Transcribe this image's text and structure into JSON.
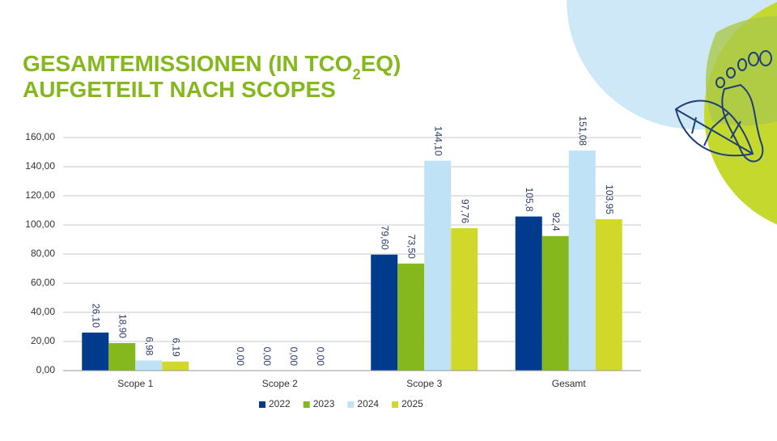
{
  "chart_data": {
    "type": "bar",
    "title_line1_start": "GESAMTEMISSIONEN (IN TCO",
    "title_line1_sub": "2",
    "title_line1_end": "EQ)",
    "title_line2": "AUFGETEILT NACH SCOPES",
    "categories": [
      "Scope 1",
      "Scope 2",
      "Scope 3",
      "Gesamt"
    ],
    "series": [
      {
        "name": "2022",
        "color": "#003b8e",
        "values": [
          26.1,
          0,
          79.6,
          105.8
        ],
        "value_labels": [
          "26,10",
          "0,00",
          "79,60",
          "105,8"
        ]
      },
      {
        "name": "2023",
        "color": "#84b81c",
        "values": [
          18.9,
          0,
          73.5,
          92.4
        ],
        "value_labels": [
          "18,90",
          "0,00",
          "73,50",
          "92,4"
        ]
      },
      {
        "name": "2024",
        "color": "#bfe2f7",
        "values": [
          6.98,
          0,
          144.1,
          151.08
        ],
        "value_labels": [
          "6,98",
          "0,00",
          "144,10",
          "151,08"
        ]
      },
      {
        "name": "2025",
        "color": "#d0d92a",
        "values": [
          6.19,
          0,
          97.76,
          103.95
        ],
        "value_labels": [
          "6,19",
          "0,00",
          "97,76",
          "103,95"
        ]
      }
    ],
    "ylim": [
      0,
      160
    ],
    "yticks": [
      {
        "value": 0,
        "label": "0,00"
      },
      {
        "value": 20,
        "label": "20,00"
      },
      {
        "value": 40,
        "label": "40,00"
      },
      {
        "value": 60,
        "label": "60,00"
      },
      {
        "value": 80,
        "label": "80,00"
      },
      {
        "value": 100,
        "label": "100,00"
      },
      {
        "value": 120,
        "label": "120,00"
      },
      {
        "value": 140,
        "label": "140,00"
      },
      {
        "value": 160,
        "label": "160,00"
      }
    ],
    "grid": true,
    "legend": "bottom"
  }
}
